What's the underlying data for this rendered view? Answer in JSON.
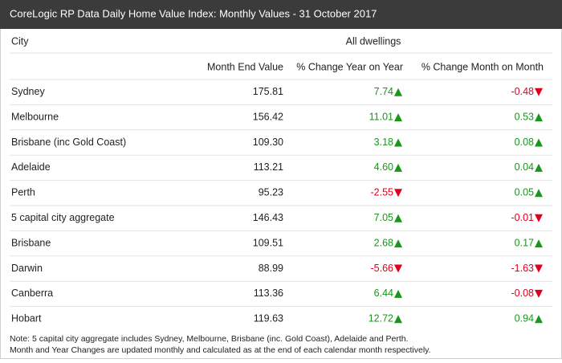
{
  "header": {
    "title": "CoreLogic RP Data Daily Home Value Index: Monthly Values - 31 October 2017"
  },
  "table": {
    "city_header": "City",
    "group_header": "All dwellings",
    "columns": [
      "Month End Value",
      "% Change Year on Year",
      "% Change Month on Month"
    ],
    "rows": [
      [
        "Sydney",
        "175.81",
        "7.74",
        "-0.48"
      ],
      [
        "Melbourne",
        "156.42",
        "11.01",
        "0.53"
      ],
      [
        "Brisbane (inc Gold Coast)",
        "109.30",
        "3.18",
        "0.08"
      ],
      [
        "Adelaide",
        "113.21",
        "4.60",
        "0.04"
      ],
      [
        "Perth",
        "95.23",
        "-2.55",
        "0.05"
      ],
      [
        "5 capital city aggregate",
        "146.43",
        "7.05",
        "-0.01"
      ],
      [
        "Brisbane",
        "109.51",
        "2.68",
        "0.17"
      ],
      [
        "Darwin",
        "88.99",
        "-5.66",
        "-1.63"
      ],
      [
        "Canberra",
        "113.36",
        "6.44",
        "-0.08"
      ],
      [
        "Hobart",
        "119.63",
        "12.72",
        "0.94"
      ]
    ]
  },
  "notes": [
    "Note: 5 capital city aggregate includes Sydney, Melbourne, Brisbane (inc. Gold Coast), Adelaide and Perth.",
    "Month and Year Changes are updated monthly and calculated as at the end of each calendar month respectively."
  ]
}
